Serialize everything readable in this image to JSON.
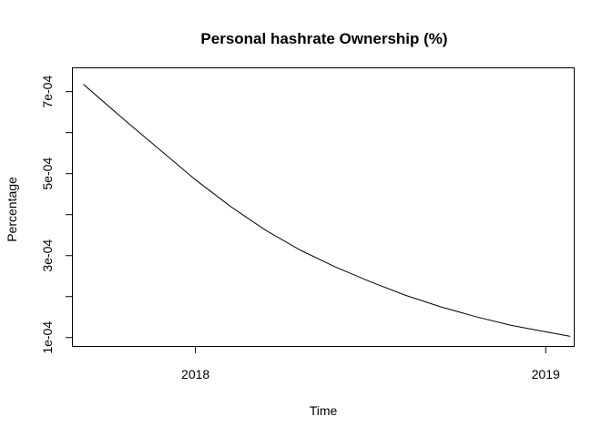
{
  "chart_data": {
    "type": "line",
    "title": "Personal hashrate Ownership (%)",
    "xlabel": "Time",
    "ylabel": "Percentage",
    "x_ticks": [
      {
        "value": 2018,
        "label": "2018"
      },
      {
        "value": 2019,
        "label": "2019"
      }
    ],
    "y_ticks": [
      {
        "value": 0.0001,
        "label": "1e-04"
      },
      {
        "value": 0.0002,
        "label": ""
      },
      {
        "value": 0.0003,
        "label": "3e-04"
      },
      {
        "value": 0.0004,
        "label": ""
      },
      {
        "value": 0.0005,
        "label": "5e-04"
      },
      {
        "value": 0.0006,
        "label": ""
      },
      {
        "value": 0.0007,
        "label": "7e-04"
      }
    ],
    "xlim": [
      2017.65,
      2019.08
    ],
    "ylim": [
      7.95e-05,
      0.000757
    ],
    "grid": false,
    "series": [
      {
        "x": [
          2017.68,
          2017.8,
          2017.9,
          2018.0,
          2018.1,
          2018.2,
          2018.3,
          2018.4,
          2018.5,
          2018.6,
          2018.7,
          2018.8,
          2018.9,
          2019.0,
          2019.07
        ],
        "y": [
          0.000718,
          0.000629,
          0.000557,
          0.000485,
          0.00042,
          0.000362,
          0.000313,
          0.000272,
          0.000236,
          0.000203,
          0.000175,
          0.000151,
          0.00013,
          0.000114,
          0.000103
        ]
      }
    ]
  }
}
